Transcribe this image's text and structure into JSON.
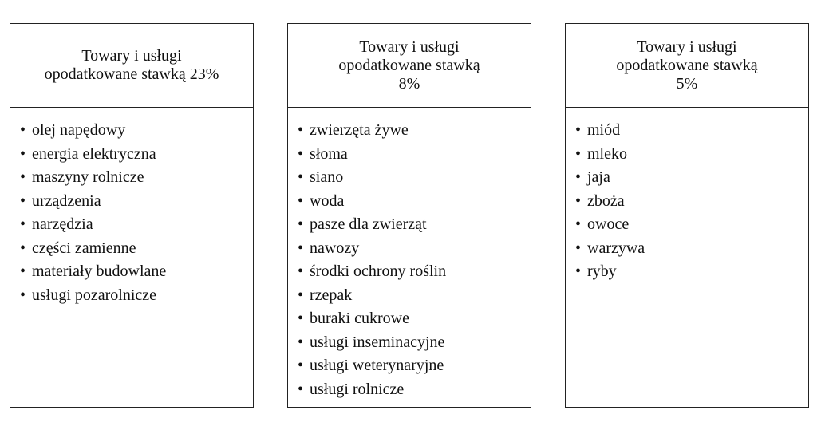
{
  "columns": [
    {
      "header": [
        "Towary i usługi",
        "opodatkowane stawką 23%"
      ],
      "items": [
        "olej napędowy",
        "energia elektryczna",
        "maszyny rolnicze",
        "urządzenia",
        "narzędzia",
        "części zamienne",
        "materiały budowlane",
        "usługi pozarolnicze"
      ]
    },
    {
      "header": [
        "Towary i usługi",
        "opodatkowane stawką",
        "8%"
      ],
      "items": [
        "zwierzęta żywe",
        "słoma",
        "siano",
        "woda",
        "pasze dla zwierząt",
        "nawozy",
        "środki ochrony roślin",
        "rzepak",
        "buraki cukrowe",
        "usługi inseminacyjne",
        "usługi weterynaryjne",
        "usługi rolnicze"
      ]
    },
    {
      "header": [
        "Towary i usługi",
        "opodatkowane stawką",
        "5%"
      ],
      "items": [
        "miód",
        "mleko",
        "jaja",
        "zboża",
        "owoce",
        "warzywa",
        "ryby"
      ]
    }
  ]
}
